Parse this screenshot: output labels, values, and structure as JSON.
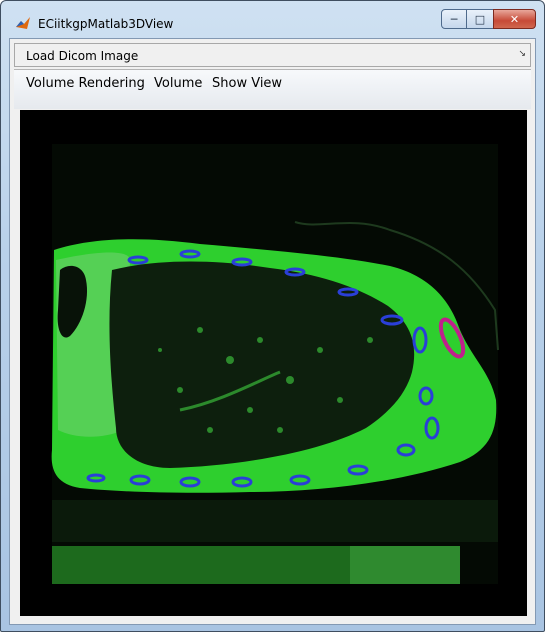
{
  "window": {
    "title": "ECiitkgpMatlab3DView",
    "controls": [
      "minimize",
      "maximize",
      "close"
    ]
  },
  "toolbar": {
    "load_label": "Load Dicom Image",
    "dock_icon": "dock-arrow-icon"
  },
  "menu": {
    "items": [
      {
        "label": "Volume Rendering"
      },
      {
        "label": "Volume"
      },
      {
        "label": "Show View"
      }
    ]
  },
  "viewer": {
    "content": "CT image rendered in green colormap",
    "colors": {
      "background": "#000000",
      "tissue": "#2ecf2e",
      "lung": "#0d1f0d",
      "vessel_blue": "#2a3fd8",
      "highlight_magenta": "#c0208c"
    }
  }
}
